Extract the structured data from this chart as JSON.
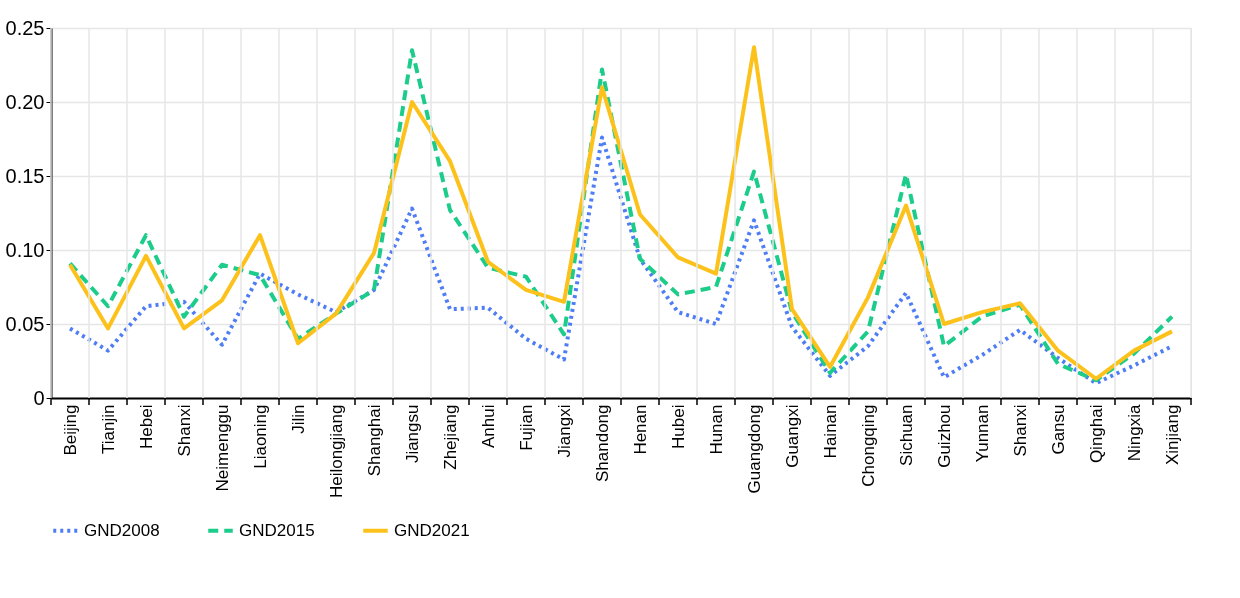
{
  "chart_data": {
    "type": "line",
    "categories": [
      "Beijing",
      "Tianjin",
      "Hebei",
      "Shanxi",
      "Neimenggu",
      "Liaoning",
      "Jilin",
      "Heilongjiang",
      "Shanghai",
      "Jiangsu",
      "Zhejiang",
      "Anhui",
      "Fujian",
      "Jiangxi",
      "Shandong",
      "Henan",
      "Hubei",
      "Hunan",
      "Guangdong",
      "Guangxi",
      "Hainan",
      "Chongqing",
      "Sichuan",
      "Guizhou",
      "Yunnan",
      "Shanxi",
      "Gansu",
      "Qinghai",
      "Ningxia",
      "Xinjiang"
    ],
    "series": [
      {
        "name": "GND2008",
        "color": "#4f7df5",
        "line_style": "dotted",
        "values": [
          0.047,
          0.032,
          0.062,
          0.065,
          0.036,
          0.084,
          0.07,
          0.058,
          0.073,
          0.128,
          0.06,
          0.061,
          0.04,
          0.026,
          0.176,
          0.094,
          0.058,
          0.05,
          0.12,
          0.048,
          0.015,
          0.035,
          0.071,
          0.014,
          0.029,
          0.046,
          0.027,
          0.01,
          0.022,
          0.035
        ]
      },
      {
        "name": "GND2015",
        "color": "#1ccc8a",
        "line_style": "dashed",
        "values": [
          0.091,
          0.062,
          0.11,
          0.055,
          0.09,
          0.083,
          0.04,
          0.057,
          0.073,
          0.235,
          0.127,
          0.088,
          0.082,
          0.043,
          0.222,
          0.094,
          0.07,
          0.075,
          0.153,
          0.058,
          0.017,
          0.045,
          0.151,
          0.035,
          0.055,
          0.063,
          0.023,
          0.012,
          0.03,
          0.055
        ]
      },
      {
        "name": "GND2021",
        "color": "#fcc21b",
        "line_style": "solid",
        "values": [
          0.09,
          0.047,
          0.096,
          0.047,
          0.066,
          0.11,
          0.037,
          0.057,
          0.098,
          0.2,
          0.16,
          0.092,
          0.073,
          0.065,
          0.21,
          0.124,
          0.095,
          0.084,
          0.237,
          0.06,
          0.021,
          0.068,
          0.13,
          0.05,
          0.058,
          0.064,
          0.032,
          0.013,
          0.032,
          0.045
        ]
      }
    ],
    "ylim": [
      0,
      0.25
    ],
    "yticks": [
      {
        "value": 0,
        "label": "0"
      },
      {
        "value": 0.05,
        "label": "0.05"
      },
      {
        "value": 0.1,
        "label": "0.10"
      },
      {
        "value": 0.15,
        "label": "0.15"
      },
      {
        "value": 0.2,
        "label": "0.20"
      },
      {
        "value": 0.25,
        "label": "0.25"
      }
    ],
    "grid": true,
    "legend": "bottom",
    "marker": "none"
  }
}
